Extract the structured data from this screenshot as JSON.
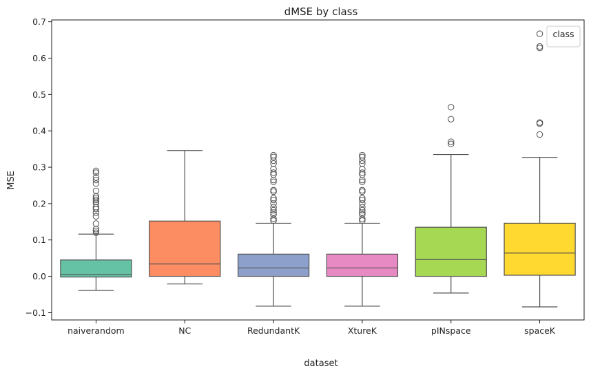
{
  "chart_data": {
    "type": "box",
    "title": "dMSE by class",
    "xlabel": "dataset",
    "ylabel": "MSE",
    "ylim": [
      -0.12,
      0.705
    ],
    "yticks": [
      "−0.1",
      "0.0",
      "0.1",
      "0.2",
      "0.3",
      "0.4",
      "0.5",
      "0.6",
      "0.7"
    ],
    "ytick_values": [
      -0.1,
      0.0,
      0.1,
      0.2,
      0.3,
      0.4,
      0.5,
      0.6,
      0.7
    ],
    "legend": {
      "title": "class",
      "placement": "top-right"
    },
    "grid": false,
    "categories": [
      "naiverandom",
      "NC",
      "RedundantK",
      "XtureK",
      "pINspace",
      "spaceK"
    ],
    "boxes": [
      {
        "category": "naiverandom",
        "color": "#66c2a5",
        "whisker_low": -0.039,
        "q1": -0.002,
        "median": 0.005,
        "q3": 0.045,
        "whisker_high": 0.116,
        "outliers": [
          0.12,
          0.125,
          0.13,
          0.145,
          0.165,
          0.175,
          0.185,
          0.19,
          0.2,
          0.205,
          0.21,
          0.215,
          0.22,
          0.235,
          0.255,
          0.265,
          0.272,
          0.285,
          0.29
        ]
      },
      {
        "category": "NC",
        "color": "#fc8d62",
        "whisker_low": -0.021,
        "q1": 0.0,
        "median": 0.034,
        "q3": 0.152,
        "whisker_high": 0.346,
        "outliers": []
      },
      {
        "category": "RedundantK",
        "color": "#8da0cb",
        "whisker_low": -0.082,
        "q1": 0.0,
        "median": 0.023,
        "q3": 0.061,
        "whisker_high": 0.146,
        "outliers": [
          0.153,
          0.158,
          0.17,
          0.175,
          0.182,
          0.19,
          0.2,
          0.21,
          0.215,
          0.233,
          0.237,
          0.26,
          0.265,
          0.28,
          0.285,
          0.295,
          0.31,
          0.318,
          0.328,
          0.333
        ]
      },
      {
        "category": "XtureK",
        "color": "#e78ac3",
        "whisker_low": -0.082,
        "q1": 0.0,
        "median": 0.023,
        "q3": 0.061,
        "whisker_high": 0.146,
        "outliers": [
          0.153,
          0.158,
          0.17,
          0.175,
          0.182,
          0.19,
          0.2,
          0.21,
          0.215,
          0.233,
          0.237,
          0.26,
          0.265,
          0.28,
          0.285,
          0.295,
          0.31,
          0.318,
          0.328,
          0.333
        ]
      },
      {
        "category": "pINspace",
        "color": "#a6d854",
        "whisker_low": -0.046,
        "q1": 0.0,
        "median": 0.046,
        "q3": 0.135,
        "whisker_high": 0.335,
        "outliers": [
          0.364,
          0.37,
          0.432,
          0.465
        ]
      },
      {
        "category": "spaceK",
        "color": "#ffd92f",
        "whisker_low": -0.084,
        "q1": 0.003,
        "median": 0.064,
        "q3": 0.146,
        "whisker_high": 0.327,
        "outliers": [
          0.39,
          0.42,
          0.423,
          0.628,
          0.632,
          0.667
        ]
      }
    ]
  }
}
